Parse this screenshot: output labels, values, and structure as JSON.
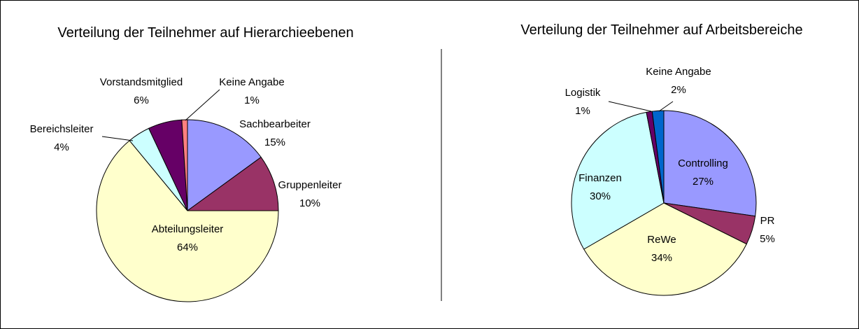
{
  "chart_data": [
    {
      "type": "pie",
      "title": "Verteilung der Teilnehmer auf Hierarchieebenen",
      "categories": [
        "Sachbearbeiter",
        "Gruppenleiter",
        "Abteilungsleiter",
        "Bereichsleiter",
        "Vorstandsmitglied",
        "Keine Angabe"
      ],
      "values": [
        15,
        10,
        64,
        4,
        6,
        1
      ],
      "value_labels": [
        "15%",
        "10%",
        "64%",
        "4%",
        "6%",
        "1%"
      ],
      "colors": [
        "#9999ff",
        "#993366",
        "#ffffcc",
        "#ccffff",
        "#660066",
        "#ff8080"
      ]
    },
    {
      "type": "pie",
      "title": "Verteilung der Teilnehmer auf Arbeitsbereiche",
      "categories": [
        "Controlling",
        "PR",
        "ReWe",
        "Finanzen",
        "Logistik",
        "Keine Angabe"
      ],
      "values": [
        27,
        5,
        34,
        30,
        1,
        2
      ],
      "value_labels": [
        "27%",
        "5%",
        "34%",
        "30%",
        "1%",
        "2%"
      ],
      "colors": [
        "#9999ff",
        "#993366",
        "#ffffcc",
        "#ccffff",
        "#660066",
        "#0066cc"
      ]
    }
  ]
}
